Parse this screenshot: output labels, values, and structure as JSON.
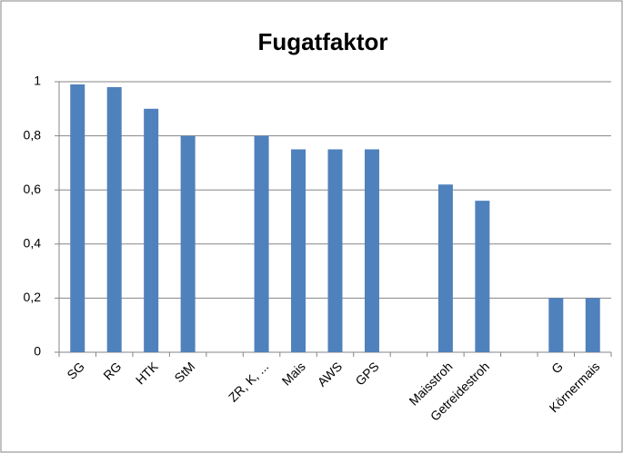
{
  "chart_data": {
    "type": "bar",
    "title": "Fugatfaktor",
    "categories": [
      "SG",
      "RG",
      "HTK",
      "StM",
      null,
      "ZR, K, ...",
      "Mais",
      "AWS",
      "GPS",
      null,
      "Maisstroh",
      "Getreidestroh",
      null,
      "G",
      "Körnermais"
    ],
    "values": [
      0.99,
      0.98,
      0.9,
      0.8,
      null,
      0.8,
      0.75,
      0.75,
      0.75,
      null,
      0.62,
      0.56,
      null,
      0.2,
      0.2
    ],
    "color": "#4f81bd",
    "ylim": [
      0,
      1
    ],
    "yticks": [
      0,
      {
        "value": 0.2,
        "label": "0,2"
      },
      {
        "value": 0.4,
        "label": "0,4"
      },
      {
        "value": 0.6,
        "label": "0,6"
      },
      {
        "value": 0.8,
        "label": "0,8"
      },
      1
    ],
    "grid": true
  }
}
